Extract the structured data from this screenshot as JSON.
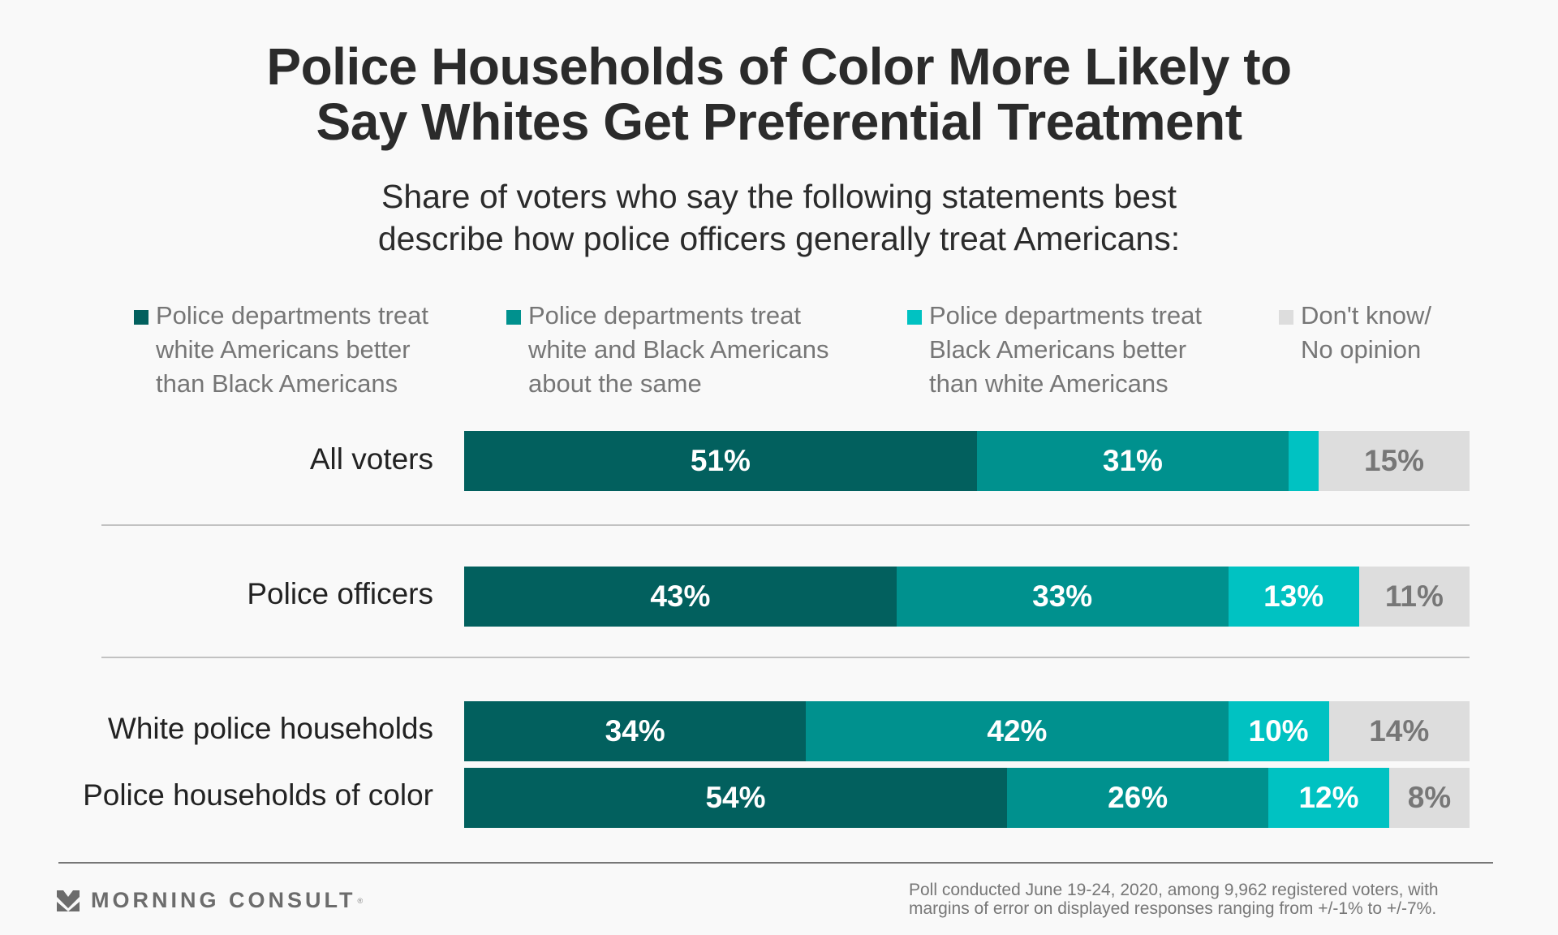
{
  "title_lines": [
    "Police Households of Color More Likely to",
    "Say Whites Get Preferential Treatment"
  ],
  "subtitle_lines": [
    "Share of voters who say the following statements best",
    "describe how police officers generally treat Americans:"
  ],
  "colors": {
    "white_better": "#02605e",
    "same": "#00918e",
    "black_better": "#00c2c2",
    "dont_know": "#dddddd"
  },
  "chart_data": {
    "type": "bar",
    "orientation": "horizontal",
    "stacked": true,
    "title": "Police Households of Color More Likely to Say Whites Get Preferential Treatment",
    "subtitle": "Share of voters who say the following statements best describe how police officers generally treat Americans:",
    "xlabel": "",
    "ylabel": "",
    "xlim": [
      0,
      100
    ],
    "unit": "%",
    "legend_position": "top",
    "categories": [
      "All voters",
      "Police officers",
      "White police households",
      "Police households of color"
    ],
    "series": [
      {
        "name": "Police departments treat white Americans better than Black Americans",
        "key": "white_better",
        "values": [
          51,
          43,
          34,
          54
        ],
        "labels": [
          "51%",
          "43%",
          "34%",
          "54%"
        ]
      },
      {
        "name": "Police departments treat white and Black Americans about the same",
        "key": "same",
        "values": [
          31,
          33,
          42,
          26
        ],
        "labels": [
          "31%",
          "33%",
          "42%",
          "26%"
        ]
      },
      {
        "name": "Police departments treat Black Americans better than white Americans",
        "key": "black_better",
        "values": [
          3,
          13,
          10,
          12
        ],
        "labels": [
          "",
          "13%",
          "10%",
          "12%"
        ]
      },
      {
        "name": "Don't know/ No opinion",
        "key": "dont_know",
        "values": [
          15,
          11,
          14,
          8
        ],
        "labels": [
          "15%",
          "11%",
          "14%",
          "8%"
        ]
      }
    ]
  },
  "legend": [
    {
      "text": "Police departments treat\nwhite Americans better\nthan Black Americans",
      "color_key": "white_better"
    },
    {
      "text": "Police departments treat\nwhite and Black Americans\nabout the same",
      "color_key": "same"
    },
    {
      "text": "Police departments treat\nBlack Americans better\nthan white Americans",
      "color_key": "black_better"
    },
    {
      "text": "Don't know/\nNo opinion",
      "color_key": "dont_know"
    }
  ],
  "footer": {
    "brand": "MORNING CONSULT",
    "brand_mark": "®",
    "note_lines": [
      "Poll conducted June 19-24, 2020, among 9,962 registered voters, with",
      "margins of error on displayed responses ranging from +/-1% to +/-7%."
    ]
  }
}
